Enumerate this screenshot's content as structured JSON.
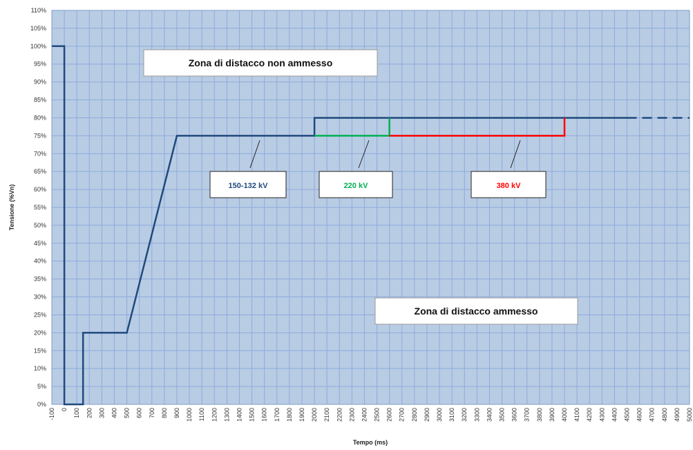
{
  "chart_data": {
    "type": "line",
    "xlabel": "Tempo (ms)",
    "ylabel": "Tensione (%Vn)",
    "xlim": [
      -100,
      5000
    ],
    "ylim": [
      0,
      110
    ],
    "x_ticks": [
      "-100",
      "0",
      "100",
      "200",
      "300",
      "400",
      "500",
      "600",
      "700",
      "800",
      "900",
      "1000",
      "1100",
      "1200",
      "1300",
      "1400",
      "1500",
      "1600",
      "1700",
      "1800",
      "1900",
      "2000",
      "2100",
      "2200",
      "2300",
      "2400",
      "2500",
      "2600",
      "2700",
      "2800",
      "2900",
      "3000",
      "3100",
      "3200",
      "3300",
      "3400",
      "3500",
      "3600",
      "3700",
      "3800",
      "3900",
      "4000",
      "4100",
      "4200",
      "4300",
      "4400",
      "4500",
      "4600",
      "4700",
      "4800",
      "4900",
      "5000"
    ],
    "y_ticks": [
      "0%",
      "5%",
      "10%",
      "15%",
      "20%",
      "25%",
      "30%",
      "35%",
      "40%",
      "45%",
      "50%",
      "55%",
      "60%",
      "65%",
      "70%",
      "75%",
      "80%",
      "85%",
      "90%",
      "95%",
      "100%",
      "105%",
      "110%"
    ],
    "grid": true,
    "background_color": "#b8cce4",
    "grid_color": "#8faadc",
    "series": [
      {
        "name": "150-132 kV",
        "color": "#1f497d",
        "points": [
          [
            -100,
            100
          ],
          [
            0,
            100
          ],
          [
            0,
            0
          ],
          [
            150,
            0
          ],
          [
            150,
            20
          ],
          [
            500,
            20
          ],
          [
            900,
            75
          ],
          [
            2000,
            75
          ],
          [
            2000,
            80
          ],
          [
            4500,
            80
          ]
        ]
      },
      {
        "color": "#1f497d",
        "dashed": true,
        "points": [
          [
            4500,
            80
          ],
          [
            5000,
            80
          ]
        ]
      },
      {
        "name": "220 kV",
        "color": "#00b050",
        "points": [
          [
            2000,
            75
          ],
          [
            2600,
            75
          ],
          [
            2600,
            80
          ]
        ]
      },
      {
        "name": "380 kV",
        "color": "#ff0000",
        "points": [
          [
            2600,
            75
          ],
          [
            4000,
            75
          ],
          [
            4000,
            80
          ]
        ]
      }
    ],
    "annotations": {
      "zone_not_allowed": "Zona di distacco non ammesso",
      "zone_allowed": "Zona di distacco ammesso",
      "labels": [
        {
          "text": "150-132 kV",
          "color": "#1f497d"
        },
        {
          "text": "220 kV",
          "color": "#00b050"
        },
        {
          "text": "380 kV",
          "color": "#ff0000"
        }
      ]
    }
  }
}
